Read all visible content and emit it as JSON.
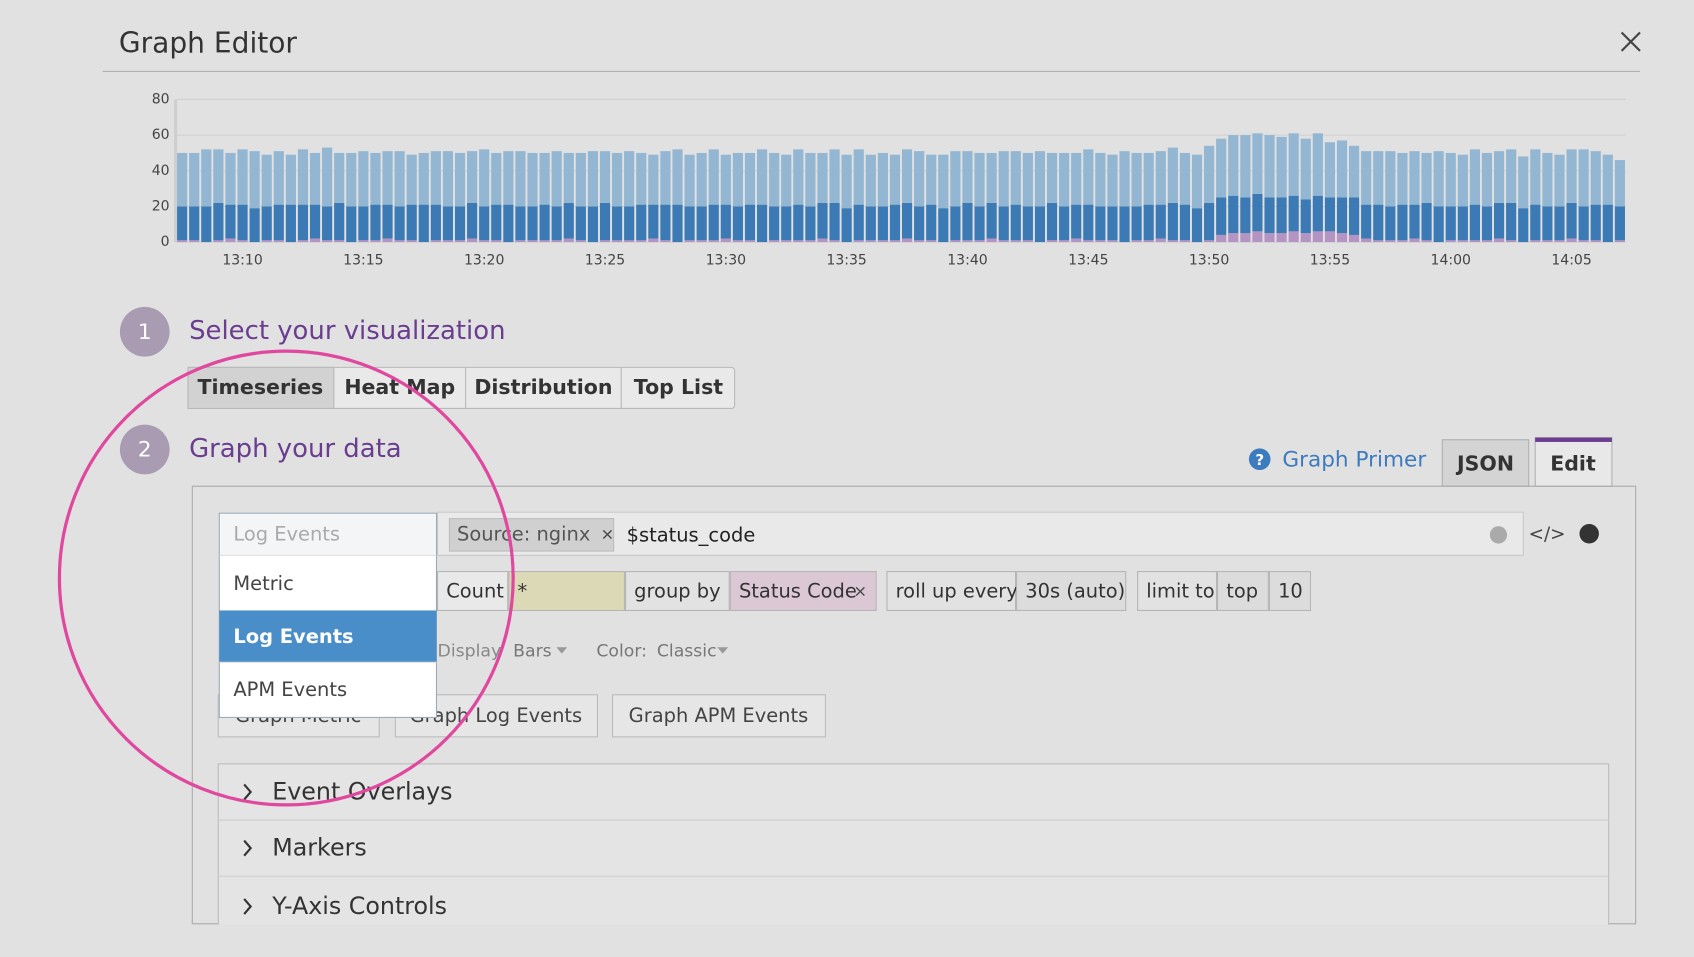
{
  "header": {
    "title": "Graph Editor"
  },
  "chart_data": {
    "type": "bar",
    "stacked": true,
    "categories": [
      null,
      null,
      null,
      null,
      null,
      "13:10",
      null,
      null,
      null,
      null,
      null,
      null,
      null,
      null,
      null,
      "13:15",
      null,
      null,
      null,
      null,
      null,
      null,
      null,
      null,
      null,
      "13:20",
      null,
      null,
      null,
      null,
      null,
      null,
      null,
      null,
      null,
      "13:25",
      null,
      null,
      null,
      null,
      null,
      null,
      null,
      null,
      null,
      "13:30",
      null,
      null,
      null,
      null,
      null,
      null,
      null,
      null,
      null,
      "13:35",
      null,
      null,
      null,
      null,
      null,
      null,
      null,
      null,
      null,
      "13:40",
      null,
      null,
      null,
      null,
      null,
      null,
      null,
      null,
      null,
      "13:45",
      null,
      null,
      null,
      null,
      null,
      null,
      null,
      null,
      null,
      "13:50",
      null,
      null,
      null,
      null,
      null,
      null,
      null,
      null,
      null,
      "13:55",
      null,
      null,
      null,
      null,
      null,
      null,
      null,
      null,
      null,
      "14:00",
      null,
      null,
      null,
      null,
      null,
      null,
      null,
      null,
      null,
      "14:05",
      null,
      null,
      null,
      null
    ],
    "series": [
      {
        "color": "#b594c4",
        "values": [
          1,
          1,
          0,
          1,
          2,
          1,
          0,
          1,
          1,
          0,
          1,
          2,
          1,
          1,
          0,
          1,
          1,
          2,
          1,
          1,
          0,
          1,
          1,
          1,
          2,
          1,
          1,
          0,
          1,
          1,
          1,
          1,
          2,
          1,
          0,
          1,
          1,
          1,
          1,
          2,
          1,
          0,
          1,
          1,
          1,
          2,
          1,
          1,
          0,
          1,
          1,
          1,
          1,
          2,
          1,
          0,
          1,
          1,
          1,
          1,
          2,
          1,
          1,
          0,
          1,
          1,
          1,
          2,
          1,
          1,
          1,
          0,
          1,
          1,
          2,
          1,
          1,
          1,
          0,
          1,
          1,
          2,
          1,
          1,
          0,
          1,
          4,
          5,
          5,
          6,
          5,
          5,
          6,
          5,
          6,
          6,
          5,
          4,
          2,
          1,
          1,
          1,
          2,
          1,
          0,
          1,
          1,
          1,
          1,
          2,
          1,
          0,
          1,
          1,
          1,
          2,
          1,
          1,
          0,
          1
        ]
      },
      {
        "color": "#3c7ab5",
        "values": [
          19,
          19,
          20,
          21,
          19,
          20,
          19,
          19,
          20,
          21,
          20,
          19,
          19,
          21,
          20,
          19,
          20,
          19,
          19,
          20,
          21,
          20,
          19,
          19,
          20,
          19,
          20,
          21,
          19,
          19,
          20,
          19,
          20,
          19,
          20,
          21,
          19,
          19,
          20,
          19,
          20,
          21,
          19,
          19,
          20,
          19,
          19,
          20,
          21,
          19,
          19,
          20,
          19,
          20,
          21,
          19,
          20,
          19,
          19,
          20,
          20,
          19,
          20,
          19,
          19,
          21,
          19,
          20,
          19,
          20,
          19,
          20,
          21,
          19,
          19,
          20,
          19,
          19,
          20,
          19,
          20,
          19,
          21,
          20,
          19,
          21,
          21,
          21,
          20,
          21,
          20,
          20,
          20,
          19,
          20,
          19,
          20,
          21,
          19,
          20,
          19,
          20,
          19,
          21,
          20,
          19,
          19,
          20,
          19,
          20,
          21,
          19,
          20,
          19,
          19,
          20,
          19,
          20,
          21,
          19
        ]
      },
      {
        "color": "#93b6d3",
        "values": [
          30,
          30,
          32,
          30,
          29,
          31,
          32,
          29,
          30,
          28,
          31,
          29,
          33,
          28,
          30,
          31,
          29,
          30,
          31,
          28,
          29,
          30,
          31,
          30,
          29,
          32,
          29,
          30,
          31,
          30,
          29,
          31,
          28,
          30,
          31,
          29,
          30,
          31,
          29,
          28,
          30,
          31,
          29,
          30,
          31,
          28,
          30,
          29,
          31,
          30,
          29,
          31,
          30,
          28,
          30,
          30,
          31,
          29,
          30,
          28,
          30,
          31,
          28,
          30,
          31,
          29,
          30,
          28,
          31,
          30,
          30,
          31,
          28,
          30,
          29,
          31,
          30,
          29,
          31,
          30,
          29,
          30,
          31,
          29,
          30,
          32,
          33,
          34,
          35,
          34,
          35,
          34,
          35,
          34,
          35,
          31,
          32,
          29,
          30,
          30,
          31,
          29,
          30,
          28,
          31,
          30,
          29,
          31,
          30,
          29,
          30,
          29,
          31,
          30,
          29,
          30,
          32,
          30,
          28,
          26
        ]
      }
    ],
    "ylim": [
      0,
      80
    ],
    "yticks": [
      0,
      20,
      40,
      60,
      80
    ],
    "grid": true
  },
  "steps": [
    {
      "number": "1",
      "label": "Select your visualization"
    },
    {
      "number": "2",
      "label": "Graph your data"
    }
  ],
  "visualization_tabs": [
    "Timeseries",
    "Heat Map",
    "Distribution",
    "Top List"
  ],
  "graph_primer": "Graph Primer",
  "mode_tabs": [
    "JSON",
    "Edit"
  ],
  "query": {
    "source_placeholder": "Log Events",
    "source_options": [
      "Metric",
      "Log Events",
      "APM Events"
    ],
    "filter_tag": "Source: nginx",
    "search": "$status_code",
    "code_icon": "</>",
    "row": [
      "Count",
      "*",
      "group by",
      "Status Code",
      "roll up every",
      "30s (auto)",
      "limit to",
      "top",
      "10"
    ],
    "display_label": "Display",
    "display_value": "Bars",
    "color_label": "Color:",
    "color_value": "Classic"
  },
  "buttons": [
    "Graph Metric",
    "Graph Log Events",
    "Graph APM Events"
  ],
  "sections": [
    "Event Overlays",
    "Markers",
    "Y-Axis Controls"
  ]
}
